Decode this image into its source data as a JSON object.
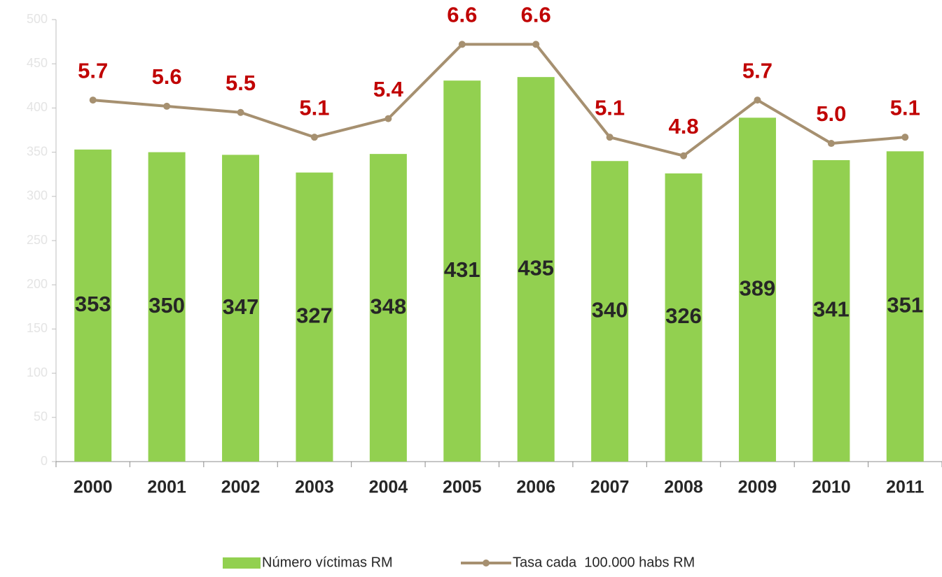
{
  "chart_data": {
    "type": "bar_line",
    "categories": [
      "2000",
      "2001",
      "2002",
      "2003",
      "2004",
      "2005",
      "2006",
      "2007",
      "2008",
      "2009",
      "2010",
      "2011"
    ],
    "series": [
      {
        "name": "Número víctimas RM",
        "type": "bar",
        "color": "#92d050",
        "values": [
          353,
          350,
          347,
          327,
          348,
          431,
          435,
          340,
          326,
          389,
          341,
          351
        ]
      },
      {
        "name": "Tasa cada  100.000 habs RM",
        "type": "line",
        "axis": "y2",
        "color": "#a69070",
        "values": [
          5.7,
          5.6,
          5.5,
          5.1,
          5.4,
          6.6,
          6.6,
          5.1,
          4.8,
          5.7,
          5.0,
          5.1
        ],
        "value_labels": [
          "5.7",
          "5.6",
          "5.5",
          "5.1",
          "5.4",
          "6.6",
          "6.6",
          "5.1",
          "4.8",
          "5.7",
          "5.0",
          "5.1"
        ]
      }
    ],
    "ylim": [
      0,
      500
    ],
    "yticks": [
      0,
      50,
      100,
      150,
      200,
      250,
      300,
      350,
      400,
      450,
      500
    ],
    "y2lim": [
      -0.14,
      7.0
    ],
    "legend": "bottom"
  }
}
